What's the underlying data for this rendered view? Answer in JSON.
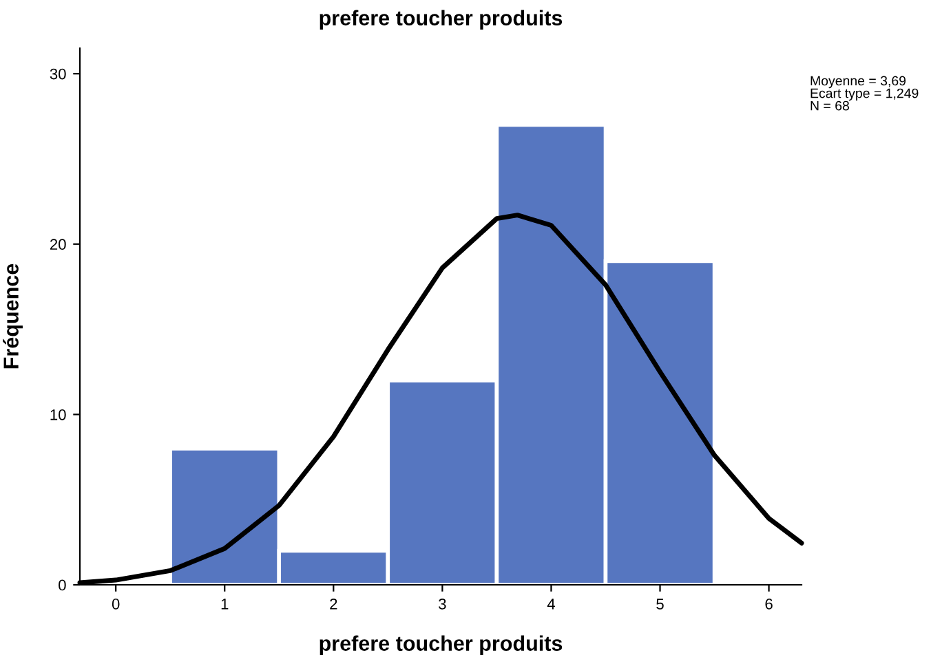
{
  "chart_data": {
    "type": "histogram",
    "title": "prefere toucher produits",
    "xlabel": "prefere toucher produits",
    "ylabel": "Fréquence",
    "bins": [
      0.5,
      1.5,
      2.5,
      3.5,
      4.5,
      5.5
    ],
    "values": [
      8,
      2,
      12,
      27,
      19
    ],
    "color": "#5676c0",
    "series": [
      {
        "type": "line",
        "color": "#000000",
        "x": [
          -0.33,
          0,
          0.5,
          1,
          1.5,
          2,
          2.5,
          3,
          3.5,
          3.69,
          4,
          4.5,
          5,
          5.5,
          6,
          6.3
        ],
        "values": [
          0.12,
          0.28,
          0.83,
          2.13,
          4.66,
          8.7,
          13.8,
          18.6,
          21.5,
          21.7,
          21.1,
          17.6,
          12.5,
          7.6,
          3.9,
          2.45
        ]
      }
    ],
    "xlim": [
      -0.33,
      6.3
    ],
    "xticks": [
      0,
      1,
      2,
      3,
      4,
      5,
      6
    ],
    "ylim": [
      0,
      31.5
    ],
    "yticks": [
      0,
      10,
      20,
      30
    ],
    "grid": false,
    "annotations": [
      "Moyenne = 3,69\nEcart type = 1,249\nN = 68"
    ]
  }
}
